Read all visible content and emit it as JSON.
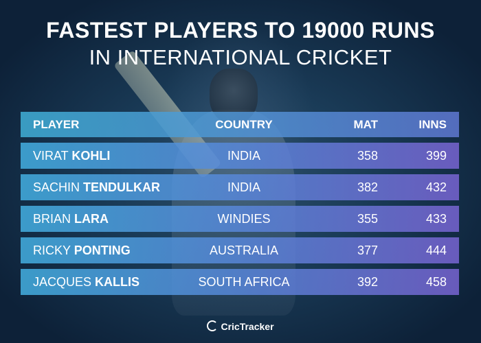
{
  "title": {
    "line1": "FASTEST PLAYERS TO 19000 RUNS",
    "line2": "IN INTERNATIONAL CRICKET"
  },
  "table": {
    "headers": {
      "player": "PLAYER",
      "country": "COUNTRY",
      "mat": "MAT",
      "inns": "INNS"
    },
    "rows": [
      {
        "first": "VIRAT",
        "last": "KOHLI",
        "country": "INDIA",
        "mat": "358",
        "inns": "399"
      },
      {
        "first": "SACHIN",
        "last": "TENDULKAR",
        "country": "INDIA",
        "mat": "382",
        "inns": "432"
      },
      {
        "first": "BRIAN",
        "last": "LARA",
        "country": "WINDIES",
        "mat": "355",
        "inns": "433"
      },
      {
        "first": "RICKY",
        "last": "PONTING",
        "country": "AUSTRALIA",
        "mat": "377",
        "inns": "444"
      },
      {
        "first": "JACQUES",
        "last": "KALLIS",
        "country": "SOUTH AFRICA",
        "mat": "392",
        "inns": "458"
      }
    ]
  },
  "brand": {
    "name": "CricTracker",
    "icon": "crictracker-logo-icon"
  },
  "colors": {
    "header_start": "#40afd7",
    "row_start": "#43afe1",
    "row_end": "#7864d2"
  }
}
